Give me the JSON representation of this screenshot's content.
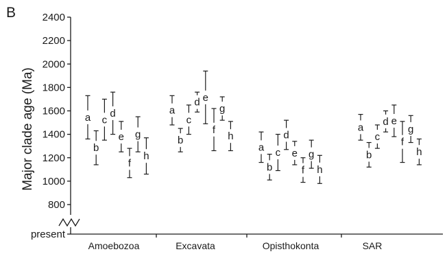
{
  "chart_data": {
    "type": "errorbar",
    "panel_label": "B",
    "title": "",
    "ylabel": "Major clade age (Ma)",
    "xlabel": "",
    "ylim": [
      800,
      2400
    ],
    "yticks": [
      800,
      1000,
      1200,
      1400,
      1600,
      1800,
      2000,
      2200,
      2400
    ],
    "y_extra_tick_label": "present",
    "axis_break": true,
    "categories": [
      "Amoebozoa",
      "Excavata",
      "Opisthokonta",
      "SAR"
    ],
    "series_labels": [
      "a",
      "b",
      "c",
      "d",
      "e",
      "f",
      "g",
      "h"
    ],
    "groups": [
      {
        "name": "Amoebozoa",
        "points": [
          {
            "label": "a",
            "low": 1360,
            "high": 1730
          },
          {
            "label": "b",
            "low": 1140,
            "high": 1430
          },
          {
            "label": "c",
            "low": 1350,
            "high": 1700
          },
          {
            "label": "d",
            "low": 1400,
            "high": 1760
          },
          {
            "label": "e",
            "low": 1250,
            "high": 1510
          },
          {
            "label": "f",
            "low": 1030,
            "high": 1280
          },
          {
            "label": "g",
            "low": 1250,
            "high": 1550
          },
          {
            "label": "h",
            "low": 1060,
            "high": 1370
          }
        ]
      },
      {
        "name": "Excavata",
        "points": [
          {
            "label": "a",
            "low": 1480,
            "high": 1730
          },
          {
            "label": "b",
            "low": 1250,
            "high": 1450
          },
          {
            "label": "c",
            "low": 1400,
            "high": 1650
          },
          {
            "label": "d",
            "low": 1590,
            "high": 1760
          },
          {
            "label": "e",
            "low": 1490,
            "high": 1940
          },
          {
            "label": "f",
            "low": 1260,
            "high": 1620
          },
          {
            "label": "g",
            "low": 1520,
            "high": 1720
          },
          {
            "label": "h",
            "low": 1260,
            "high": 1510
          }
        ]
      },
      {
        "name": "Opisthokonta",
        "points": [
          {
            "label": "a",
            "low": 1160,
            "high": 1420
          },
          {
            "label": "b",
            "low": 1010,
            "high": 1230
          },
          {
            "label": "c",
            "low": 1090,
            "high": 1400
          },
          {
            "label": "d",
            "low": 1270,
            "high": 1520
          },
          {
            "label": "e",
            "low": 1140,
            "high": 1340
          },
          {
            "label": "f",
            "low": 990,
            "high": 1200
          },
          {
            "label": "g",
            "low": 1110,
            "high": 1350
          },
          {
            "label": "h",
            "low": 980,
            "high": 1220
          }
        ]
      },
      {
        "name": "SAR",
        "points": [
          {
            "label": "a",
            "low": 1350,
            "high": 1570
          },
          {
            "label": "b",
            "low": 1120,
            "high": 1330
          },
          {
            "label": "c",
            "low": 1280,
            "high": 1480
          },
          {
            "label": "d",
            "low": 1420,
            "high": 1600
          },
          {
            "label": "e",
            "low": 1380,
            "high": 1650
          },
          {
            "label": "f",
            "low": 1160,
            "high": 1510
          },
          {
            "label": "g",
            "low": 1330,
            "high": 1560
          },
          {
            "label": "h",
            "low": 1140,
            "high": 1360
          }
        ]
      }
    ]
  }
}
